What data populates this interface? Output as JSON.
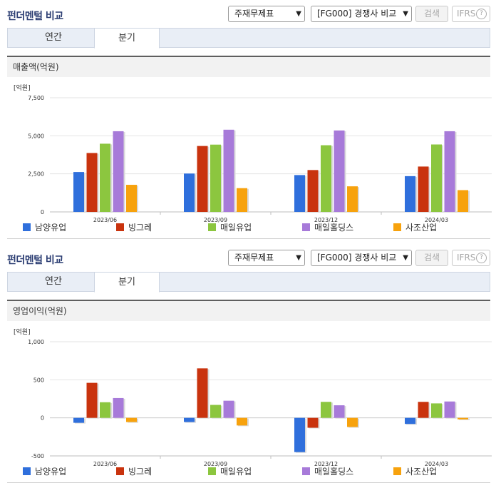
{
  "colors": {
    "series": [
      "#2f6fdc",
      "#c9330e",
      "#8cc63f",
      "#a77ad9",
      "#f7a20d"
    ]
  },
  "panels": [
    {
      "title": "펀더멘털 비교",
      "select1": "주재무제표",
      "select2": "[FG000] 경쟁사 비교",
      "search_label": "검색",
      "ifrs_label": "IFRS",
      "help_symbol": "?",
      "tabs": [
        "연간",
        "분기"
      ],
      "active_tab": "분기",
      "section_title": "매출액(억원)"
    },
    {
      "title": "펀더멘털 비교",
      "select1": "주재무제표",
      "select2": "[FG000] 경쟁사 비교",
      "search_label": "검색",
      "ifrs_label": "IFRS",
      "help_symbol": "?",
      "tabs": [
        "연간",
        "분기"
      ],
      "active_tab": "분기",
      "section_title": "영업이익(억원)"
    }
  ],
  "chart_data": [
    {
      "type": "bar",
      "unit_label": "[억원]",
      "categories": [
        "2023/06",
        "2023/09",
        "2023/12",
        "2024/03"
      ],
      "ylim": [
        0,
        7500
      ],
      "yticks": [
        0,
        2500,
        5000,
        7500
      ],
      "ytick_labels": [
        "0",
        "2,500",
        "5,000",
        "7,500"
      ],
      "grid": true,
      "legend": "bottom",
      "series": [
        {
          "name": "남양유업",
          "values": [
            2620,
            2520,
            2420,
            2350
          ]
        },
        {
          "name": "빙그레",
          "values": [
            3870,
            4330,
            2750,
            2980
          ]
        },
        {
          "name": "매일유업",
          "values": [
            4480,
            4420,
            4380,
            4430
          ]
        },
        {
          "name": "매일홀딩스",
          "values": [
            5300,
            5400,
            5350,
            5300
          ]
        },
        {
          "name": "사조산업",
          "values": [
            1780,
            1560,
            1680,
            1430
          ]
        }
      ]
    },
    {
      "type": "bar",
      "unit_label": "[억원]",
      "categories": [
        "2023/06",
        "2023/09",
        "2023/12",
        "2024/03"
      ],
      "ylim": [
        -500,
        1000
      ],
      "yticks": [
        -500,
        0,
        500,
        1000
      ],
      "ytick_labels": [
        "-500",
        "0",
        "500",
        "1,000"
      ],
      "grid": true,
      "legend": "bottom",
      "series": [
        {
          "name": "남양유업",
          "values": [
            -65,
            -55,
            -450,
            -80
          ]
        },
        {
          "name": "빙그레",
          "values": [
            460,
            650,
            -130,
            210
          ]
        },
        {
          "name": "매일유업",
          "values": [
            205,
            170,
            210,
            190
          ]
        },
        {
          "name": "매일홀딩스",
          "values": [
            260,
            225,
            165,
            215
          ]
        },
        {
          "name": "사조산업",
          "values": [
            -55,
            -100,
            -120,
            -20
          ]
        }
      ]
    }
  ]
}
